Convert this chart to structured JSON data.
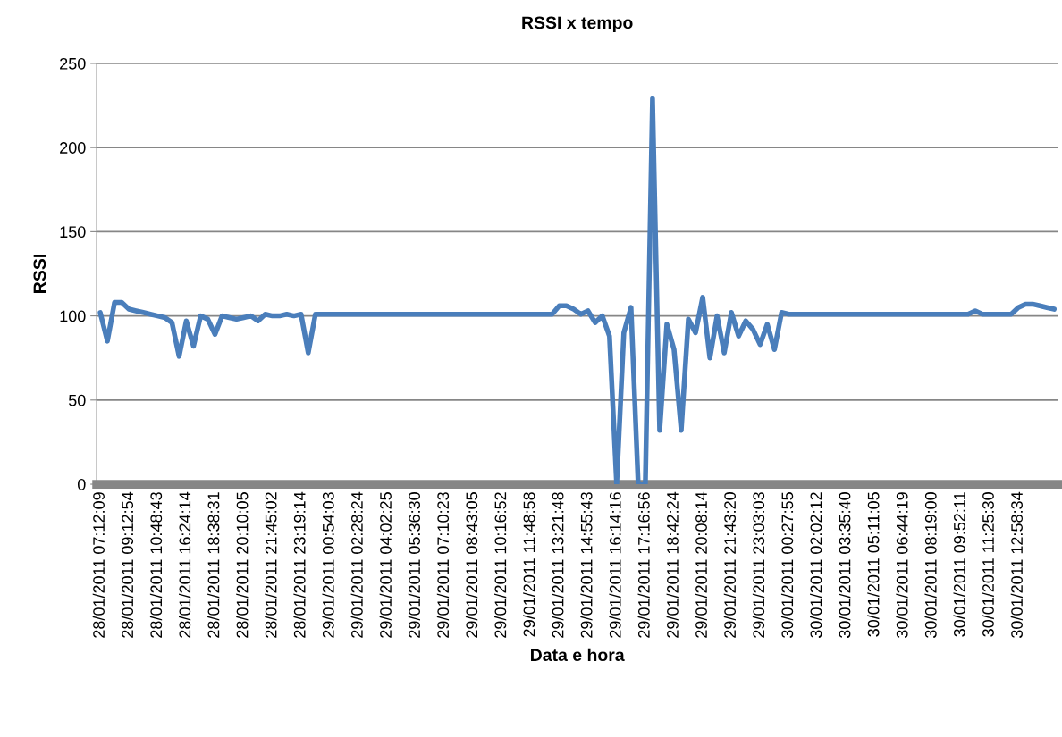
{
  "chart_data": {
    "type": "line",
    "title": "RSSI x tempo",
    "xlabel": "Data e hora",
    "ylabel": "RSSI",
    "categories": [
      "28/01/2011 07:12:09",
      null,
      null,
      null,
      "28/01/2011 09:12:54",
      null,
      null,
      null,
      "28/01/2011 10:48:43",
      null,
      null,
      null,
      "28/01/2011 16:24:14",
      null,
      null,
      null,
      "28/01/2011 18:38:31",
      null,
      null,
      null,
      "28/01/2011 20:10:05",
      null,
      null,
      null,
      "28/01/2011 21:45:02",
      null,
      null,
      null,
      "28/01/2011 23:19:14",
      null,
      null,
      null,
      "29/01/2011 00:54:03",
      null,
      null,
      null,
      "29/01/2011 02:28:24",
      null,
      null,
      null,
      "29/01/2011 04:02:25",
      null,
      null,
      null,
      "29/01/2011 05:36:30",
      null,
      null,
      null,
      "29/01/2011 07:10:23",
      null,
      null,
      null,
      "29/01/2011 08:43:05",
      null,
      null,
      null,
      "29/01/2011 10:16:52",
      null,
      null,
      null,
      "29/01/2011 11:48:58",
      null,
      null,
      null,
      "29/01/2011 13:21:48",
      null,
      null,
      null,
      "29/01/2011 14:55:43",
      null,
      null,
      null,
      "29/01/2011 16:14:16",
      null,
      null,
      null,
      "29/01/2011 17:16:56",
      null,
      null,
      null,
      "29/01/2011 18:42:24",
      null,
      null,
      null,
      "29/01/2011 20:08:14",
      null,
      null,
      null,
      "29/01/2011 21:43:20",
      null,
      null,
      null,
      "29/01/2011 23:03:03",
      null,
      null,
      null,
      "30/01/2011 00:27:55",
      null,
      null,
      null,
      "30/01/2011 02:02:12",
      null,
      null,
      null,
      "30/01/2011 03:35:40",
      null,
      null,
      null,
      "30/01/2011 05:11:05",
      null,
      null,
      null,
      "30/01/2011 06:44:19",
      null,
      null,
      null,
      "30/01/2011 08:19:00",
      null,
      null,
      null,
      "30/01/2011 09:52:11",
      null,
      null,
      null,
      "30/01/2011 11:25:30",
      null,
      null,
      null,
      "30/01/2011 12:58:34",
      null,
      null,
      null,
      null,
      null
    ],
    "series": [
      {
        "color": "#4a7ebb",
        "values": [
          102,
          85,
          108,
          108,
          104,
          103,
          102,
          101,
          100,
          99,
          96,
          76,
          97,
          82,
          100,
          98,
          89,
          100,
          99,
          98,
          99,
          100,
          97,
          101,
          100,
          100,
          101,
          100,
          101,
          78,
          101,
          101,
          101,
          101,
          101,
          101,
          101,
          101,
          101,
          101,
          101,
          101,
          101,
          101,
          101,
          101,
          101,
          101,
          101,
          101,
          101,
          101,
          101,
          101,
          101,
          101,
          101,
          101,
          101,
          101,
          101,
          101,
          101,
          101,
          106,
          106,
          104,
          101,
          103,
          96,
          100,
          88,
          0,
          90,
          105,
          0,
          0,
          229,
          32,
          95,
          80,
          32,
          98,
          90,
          111,
          75,
          100,
          78,
          102,
          88,
          97,
          92,
          83,
          95,
          80,
          102,
          101,
          101,
          101,
          101,
          101,
          101,
          101,
          101,
          101,
          101,
          101,
          101,
          101,
          101,
          101,
          101,
          101,
          101,
          101,
          101,
          101,
          101,
          101,
          101,
          101,
          101,
          103,
          101,
          101,
          101,
          101,
          101,
          105,
          107,
          107,
          106,
          105,
          104
        ]
      }
    ],
    "ylim": [
      0,
      250
    ],
    "yticks": [
      0,
      50,
      100,
      150,
      200,
      250
    ],
    "grid": "y",
    "marker": "none",
    "line_style": "solid"
  }
}
